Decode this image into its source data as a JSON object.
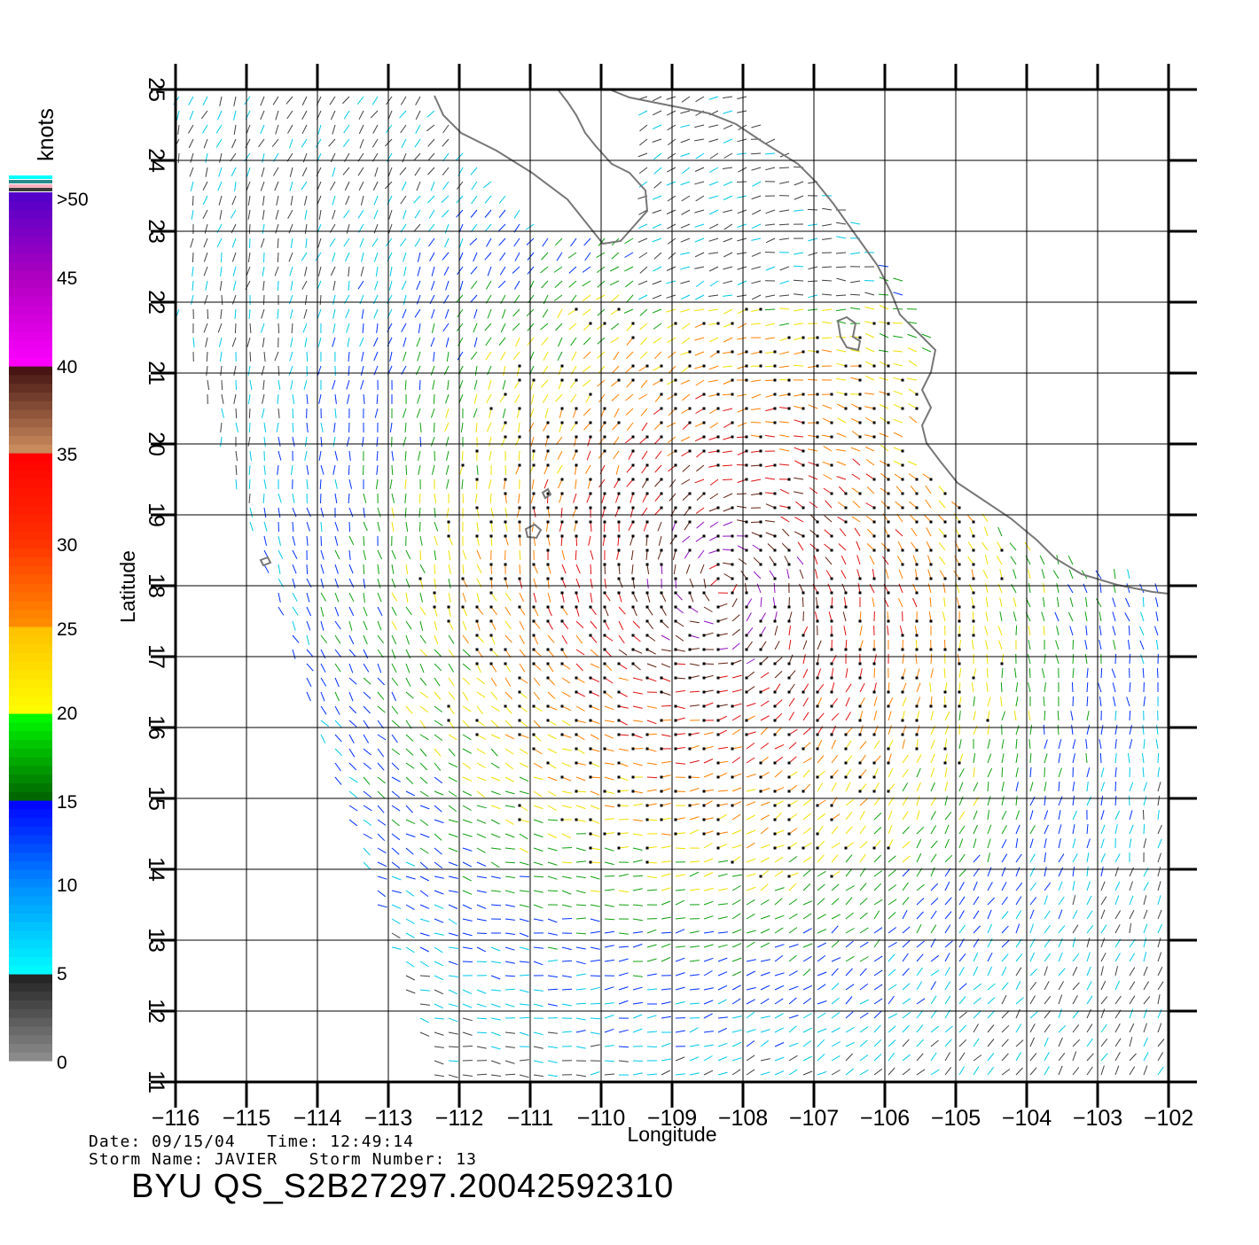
{
  "colorbar": {
    "unit": "knots",
    "labels": [
      "0",
      "5",
      "10",
      "15",
      "20",
      "25",
      "30",
      "35",
      "40",
      "45",
      ">50"
    ],
    "colors_top_to_bottom": [
      "#5a00c8",
      "#a000c8",
      "#ff00ff",
      "#4a1010",
      "#c88050",
      "#ff0000",
      "#ff3000",
      "#ff8000",
      "#ffc000",
      "#ffff00",
      "#00ff00",
      "#008000",
      "#0000ff",
      "#0080ff",
      "#00ffff",
      "#303030",
      "#808080"
    ]
  },
  "chart_data": {
    "type": "vector-field-map",
    "region": "Eastern North Pacific, west coast of Mexico",
    "xlabel": "Longitude",
    "ylabel": "Latitude",
    "xlim": [
      -116,
      -102
    ],
    "ylim": [
      11,
      25
    ],
    "x_ticks": [
      "-116",
      "-115",
      "-114",
      "-113",
      "-112",
      "-111",
      "-110",
      "-109",
      "-108",
      "-107",
      "-106",
      "-105",
      "-104",
      "-103",
      "-102"
    ],
    "y_ticks": [
      "11",
      "12",
      "13",
      "14",
      "15",
      "16",
      "17",
      "18",
      "19",
      "20",
      "21",
      "22",
      "23",
      "24",
      "25"
    ],
    "grid": true,
    "storm_center": {
      "lon": -108.3,
      "lat": 18.0
    },
    "max_wind_knots": 50
  },
  "info": {
    "date_line": "Date: 09/15/04   Time: 12:49:14",
    "storm_line": "Storm Name: JAVIER   Storm Number: 13",
    "file_title": "BYU QS_S2B27297.20042592310"
  }
}
